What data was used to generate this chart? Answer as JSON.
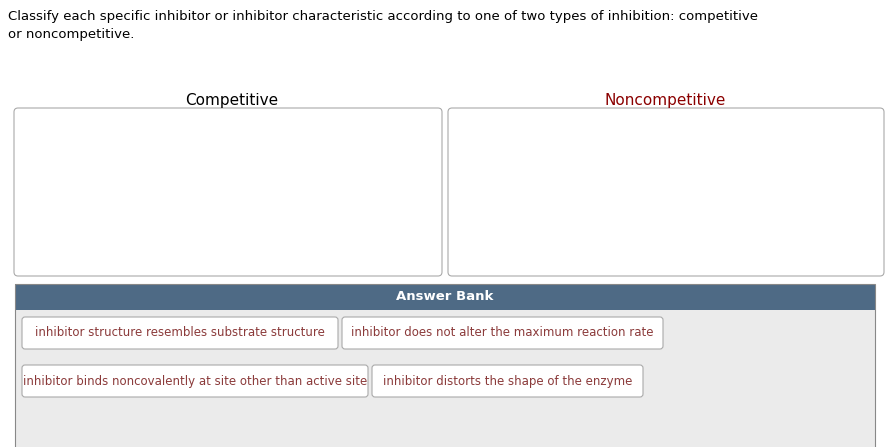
{
  "title_line1": "Classify each specific inhibitor or inhibitor characteristic according to one of two types of inhibition: competitive",
  "title_line2": "or noncompetitive.",
  "title_color": "#000000",
  "competitive_label": "Competitive",
  "competitive_label_color": "#000000",
  "noncompetitive_label": "Noncompetitive",
  "noncompetitive_label_color": "#8B0000",
  "answer_bank_label": "Answer Bank",
  "answer_bank_bg": "#4e6a85",
  "answer_bank_text_color": "#ffffff",
  "answer_bank_area_bg": "#ebebeb",
  "items": [
    "inhibitor structure resembles substrate structure",
    "inhibitor does not alter the maximum reaction rate",
    "inhibitor binds noncovalently at site other than active site",
    "inhibitor distorts the shape of the enzyme"
  ],
  "item_text_color": "#8B3A3A",
  "item_bg": "#ffffff",
  "item_border_color": "#aaaaaa",
  "drop_box_border": "#aaaaaa",
  "bg_color": "#ffffff",
  "fig_width": 8.9,
  "fig_height": 4.47,
  "dpi": 100
}
